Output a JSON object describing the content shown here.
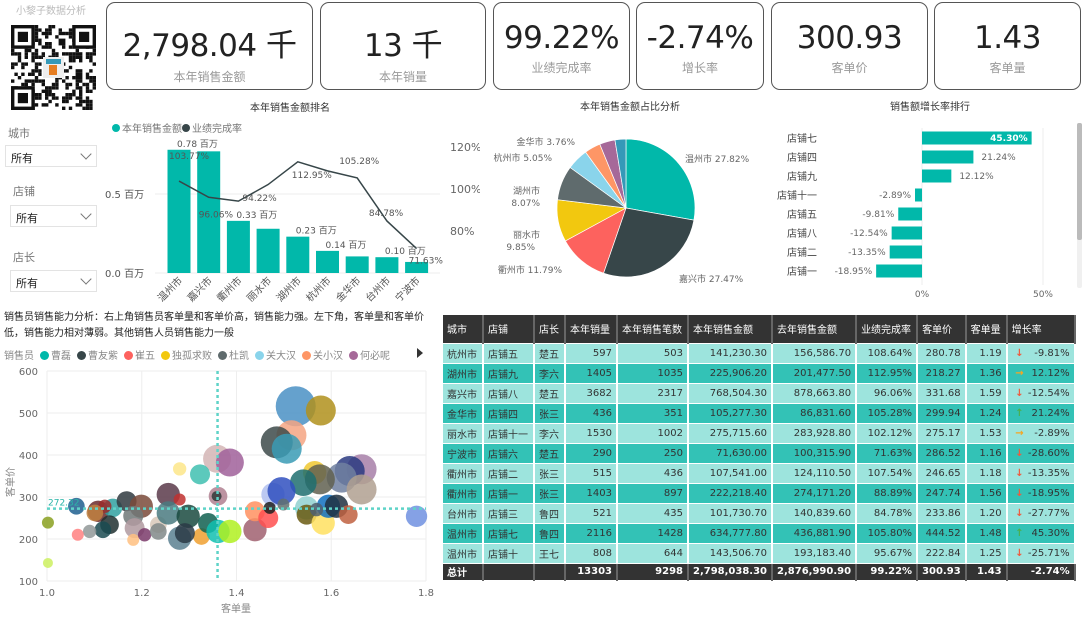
{
  "brand": "小黎子数据分析",
  "kpis": [
    {
      "value": "2,798.04 千",
      "label": "本年销售金额"
    },
    {
      "value": "13 千",
      "label": "本年销量"
    },
    {
      "value": "99.22%",
      "label": "业绩完成率"
    },
    {
      "value": "-2.74%",
      "label": "增长率"
    },
    {
      "value": "300.93",
      "label": "客单价"
    },
    {
      "value": "1.43",
      "label": "客单量"
    }
  ],
  "filters": [
    {
      "label": "城市",
      "value": "所有"
    },
    {
      "label": "店铺",
      "value": "所有"
    },
    {
      "label": "店长",
      "value": "所有"
    }
  ],
  "colors": {
    "teal": "#01b8aa",
    "dark": "#374649",
    "up": "#4caf50",
    "down": "#f05a3c",
    "flat": "#f6a623",
    "header": "#333333"
  },
  "chart_data": [
    {
      "type": "bar+line",
      "title": "本年销售金额排名",
      "legend": [
        "本年销售金额",
        "业绩完成率"
      ],
      "categories": [
        "温州市",
        "嘉兴市",
        "衢州市",
        "丽水市",
        "湖州市",
        "杭州市",
        "金华市",
        "台州市",
        "宁波市"
      ],
      "bar_values": [
        0.78,
        0.77,
        0.33,
        0.28,
        0.23,
        0.14,
        0.105,
        0.1,
        0.07
      ],
      "bar_labels": [
        "0.78 百万",
        "",
        "0.33 百万",
        "",
        "0.23 百万",
        "0.14 百万",
        "",
        "0.10 百万",
        ""
      ],
      "line_values": [
        103.77,
        96.06,
        94.22,
        102.12,
        112.95,
        108.64,
        105.28,
        84.78,
        71.63
      ],
      "line_labels": [
        "103.77%",
        "96.06%",
        "94.22%",
        "",
        "112.95%",
        "",
        "105.28%",
        "84.78%",
        "71.63%"
      ],
      "y_ticks": [
        "0.0 百万",
        "0.5 百万"
      ],
      "y2_ticks": [
        "80%",
        "100%",
        "120%"
      ]
    },
    {
      "type": "pie",
      "title": "本年销售金额占比分析",
      "categories": [
        "温州市",
        "嘉兴市",
        "衢州市",
        "丽水市",
        "湖州市",
        "杭州市",
        "金华市",
        "台州市",
        "宁波市"
      ],
      "values": [
        27.82,
        27.47,
        11.79,
        9.85,
        8.07,
        5.05,
        3.76,
        3.64,
        2.56
      ],
      "labels": [
        "温州市 27.82%",
        "嘉兴市 27.47%",
        "衢州市 11.79%",
        "丽水市",
        "湖州市",
        "杭州市 5.05%",
        "金华市 3.76%"
      ],
      "sublabels": [
        "9.85%",
        "8.07%"
      ],
      "colors": [
        "#01b8aa",
        "#374649",
        "#fd625e",
        "#f2c80f",
        "#5f6b6d",
        "#8ad4eb",
        "#fe9666",
        "#a66999",
        "#3599b8"
      ]
    },
    {
      "type": "bar-horizontal",
      "title": "销售额增长率排行",
      "categories": [
        "店铺七",
        "店铺四",
        "店铺九",
        "店铺十一",
        "店铺五",
        "店铺八",
        "店铺二",
        "店铺一"
      ],
      "values": [
        45.3,
        21.24,
        12.12,
        -2.89,
        -9.81,
        -12.54,
        -13.35,
        -18.95
      ],
      "labels": [
        "45.30%",
        "21.24%",
        "12.12%",
        "-2.89%",
        "-9.81%",
        "-12.54%",
        "-13.35%",
        "-18.95%"
      ],
      "x_ticks": [
        "0%",
        "50%"
      ]
    },
    {
      "type": "scatter",
      "title": "销售员销售能力分析：右上角销售员客单量和客单价高，销售能力强。左下角，客单量和客单价低，销售能力相对薄弱。其他销售人员销售能力一般",
      "legend_title": "销售员",
      "legend": [
        {
          "name": "曹磊",
          "color": "#01b8aa"
        },
        {
          "name": "曹友紫",
          "color": "#374649"
        },
        {
          "name": "崔五",
          "color": "#fd625e"
        },
        {
          "name": "独孤求败",
          "color": "#f2c80f"
        },
        {
          "name": "杜凯",
          "color": "#5f6b6d"
        },
        {
          "name": "关大汉",
          "color": "#8ad4eb"
        },
        {
          "name": "关小汉",
          "color": "#fe9666"
        },
        {
          "name": "何必呢",
          "color": "#a66999"
        }
      ],
      "xlabel": "客单量",
      "ylabel": "客单价",
      "xlim": [
        1.0,
        1.8
      ],
      "ylim": [
        100,
        600
      ],
      "x_ticks": [
        "1.0",
        "1.2",
        "1.4",
        "1.6",
        "1.8"
      ],
      "y_ticks": [
        "100",
        "200",
        "300",
        "400",
        "500",
        "600"
      ],
      "ref_x": 1.36,
      "ref_y": 272.32,
      "ref_y_label": "272.32",
      "points": [
        [
          1.525,
          516,
          60,
          "#4a90c4"
        ],
        [
          1.578,
          506,
          45,
          "#b0901c"
        ],
        [
          1.516,
          447,
          45,
          "#f4a582"
        ],
        [
          1.485,
          430,
          48,
          "#3d4a4a"
        ],
        [
          1.506,
          415,
          45,
          "#3a9bb5"
        ],
        [
          1.359,
          391,
          42,
          "#d4b5b5"
        ],
        [
          1.386,
          382,
          42,
          "#a0609a"
        ],
        [
          1.28,
          367,
          20,
          "#fde68a"
        ],
        [
          1.323,
          354,
          30,
          "#40c0b0"
        ],
        [
          1.664,
          366,
          45,
          "#a77fa8"
        ],
        [
          1.639,
          362,
          45,
          "#2a3a80"
        ],
        [
          1.622,
          346,
          45,
          "#7080a0"
        ],
        [
          1.664,
          318,
          45,
          "#b0a090"
        ],
        [
          1.565,
          358,
          35,
          "#f0c830"
        ],
        [
          1.576,
          342,
          45,
          "#606050"
        ],
        [
          1.541,
          334,
          40,
          "#1f6f70"
        ],
        [
          1.477,
          306,
          35,
          "#b0c0f0"
        ],
        [
          1.495,
          314,
          42,
          "#3050c0"
        ],
        [
          1.361,
          302,
          28,
          "#b08090"
        ],
        [
          1.358,
          302,
          15,
          "#303838"
        ],
        [
          1.256,
          306,
          35,
          "#5a3a4a"
        ],
        [
          1.28,
          294,
          18,
          "#c0302f"
        ],
        [
          1.062,
          278,
          25,
          "#1f5f8f"
        ],
        [
          1.108,
          266,
          32,
          "#6a2a2a"
        ],
        [
          1.139,
          274,
          28,
          "#30a0a0"
        ],
        [
          1.122,
          278,
          20,
          "#9a2a2a"
        ],
        [
          1.168,
          290,
          30,
          "#303a40"
        ],
        [
          1.199,
          278,
          35,
          "#7a4a3a"
        ],
        [
          1.101,
          262,
          25,
          "#c08040"
        ],
        [
          1.182,
          255,
          30,
          "#707878"
        ],
        [
          1.132,
          234,
          28,
          "#203030"
        ],
        [
          1.118,
          222,
          25,
          "#1a4a50"
        ],
        [
          1.09,
          218,
          20,
          "#909898"
        ],
        [
          1.065,
          210,
          18,
          "#ff8080"
        ],
        [
          1.002,
          239,
          18,
          "#8aa020"
        ],
        [
          1.002,
          143,
          15,
          "#ccf060"
        ],
        [
          1.185,
          226,
          30,
          "#b09aa0"
        ],
        [
          1.182,
          198,
          18,
          "#ffc080"
        ],
        [
          1.206,
          210,
          20,
          "#7a3a6a"
        ],
        [
          1.235,
          234,
          25,
          "#d8c8b8"
        ],
        [
          1.235,
          218,
          25,
          "#808888"
        ],
        [
          1.256,
          262,
          35,
          "#4a7a80"
        ],
        [
          1.28,
          202,
          35,
          "#5a8090"
        ],
        [
          1.326,
          206,
          25,
          "#f0a030"
        ],
        [
          1.298,
          254,
          35,
          "#1a4a40"
        ],
        [
          1.291,
          214,
          30,
          "#2a3a45"
        ],
        [
          1.34,
          238,
          30,
          "#106050"
        ],
        [
          1.361,
          218,
          35,
          "#10c0b0"
        ],
        [
          1.386,
          218,
          35,
          "#b0f020"
        ],
        [
          1.439,
          222,
          35,
          "#a06070"
        ],
        [
          1.439,
          266,
          30,
          "#ff9060"
        ],
        [
          1.467,
          250,
          30,
          "#ff5050"
        ],
        [
          1.47,
          274,
          18,
          "#202020"
        ],
        [
          1.499,
          282,
          18,
          "#607070"
        ],
        [
          1.548,
          274,
          35,
          "#90d0d0"
        ],
        [
          1.548,
          258,
          30,
          "#6a5a10"
        ],
        [
          1.583,
          238,
          35,
          "#ffe060"
        ],
        [
          1.594,
          278,
          35,
          "#1070c0"
        ],
        [
          1.611,
          278,
          35,
          "#203040"
        ],
        [
          1.569,
          270,
          20,
          "#506070"
        ],
        [
          1.636,
          258,
          28,
          "#c06040"
        ],
        [
          1.78,
          254,
          32,
          "#7090e0"
        ]
      ]
    }
  ],
  "table": {
    "headers": [
      "城市",
      "店铺",
      "店长",
      "本年销量",
      "本年销售笔数",
      "本年销售金额",
      "去年销售金额",
      "业绩完成率",
      "客单价",
      "客单量",
      "增长率"
    ],
    "rows": [
      [
        "杭州市",
        "店铺五",
        "楚五",
        "597",
        "503",
        "141,230.30",
        "156,586.70",
        "108.64%",
        "280.78",
        "1.19",
        "down",
        "-9.81%"
      ],
      [
        "湖州市",
        "店铺九",
        "李六",
        "1405",
        "1035",
        "225,906.20",
        "201,477.50",
        "112.95%",
        "218.27",
        "1.36",
        "flat",
        "12.12%"
      ],
      [
        "嘉兴市",
        "店铺八",
        "楚五",
        "3682",
        "2317",
        "768,504.30",
        "878,663.80",
        "96.06%",
        "331.68",
        "1.59",
        "down",
        "-12.54%"
      ],
      [
        "金华市",
        "店铺四",
        "张三",
        "436",
        "351",
        "105,277.30",
        "86,831.60",
        "105.28%",
        "299.94",
        "1.24",
        "up",
        "21.24%"
      ],
      [
        "丽水市",
        "店铺十一",
        "李六",
        "1530",
        "1002",
        "275,715.60",
        "283,928.80",
        "102.12%",
        "275.17",
        "1.53",
        "flat",
        "-2.89%"
      ],
      [
        "宁波市",
        "店铺六",
        "楚五",
        "290",
        "250",
        "71,630.00",
        "100,315.90",
        "71.63%",
        "286.52",
        "1.16",
        "down",
        "-28.60%"
      ],
      [
        "衢州市",
        "店铺二",
        "张三",
        "515",
        "436",
        "107,541.00",
        "124,110.50",
        "107.54%",
        "246.65",
        "1.18",
        "down",
        "-13.35%"
      ],
      [
        "衢州市",
        "店铺一",
        "张三",
        "1403",
        "897",
        "222,218.40",
        "274,171.20",
        "88.89%",
        "247.74",
        "1.56",
        "down",
        "-18.95%"
      ],
      [
        "台州市",
        "店铺三",
        "鲁四",
        "521",
        "435",
        "101,730.70",
        "140,839.60",
        "84.78%",
        "233.86",
        "1.20",
        "down",
        "-27.77%"
      ],
      [
        "温州市",
        "店铺七",
        "鲁四",
        "2116",
        "1428",
        "634,777.80",
        "436,881.90",
        "105.80%",
        "444.52",
        "1.48",
        "up",
        "45.30%"
      ],
      [
        "温州市",
        "店铺十",
        "王七",
        "808",
        "644",
        "143,506.70",
        "193,183.40",
        "95.67%",
        "222.84",
        "1.25",
        "down",
        "-25.71%"
      ]
    ],
    "total": [
      "总计",
      "",
      "",
      "13303",
      "9298",
      "2,798,038.30",
      "2,876,990.90",
      "99.22%",
      "300.93",
      "1.43",
      "-2.74%"
    ]
  }
}
